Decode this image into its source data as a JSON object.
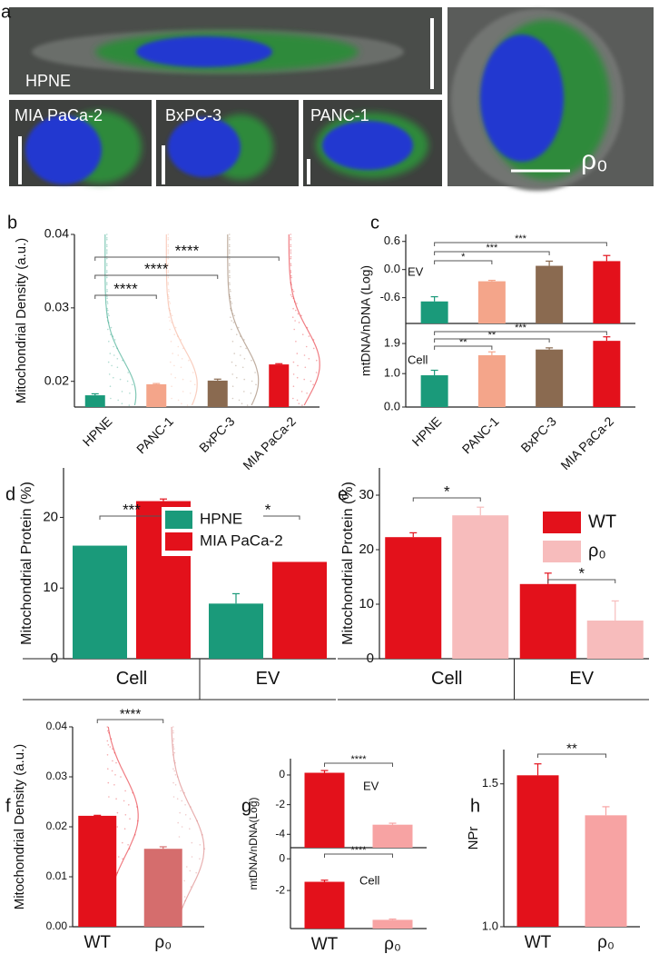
{
  "figure_a": {
    "letter": "a",
    "labels": [
      "HPNE",
      "MIA PaCa-2",
      "BxPC-3",
      "PANC-1",
      "ρ₀"
    ]
  },
  "chart_data": [
    {
      "letter": "b",
      "type": "bar",
      "ylabel": "Mitochondrial Density (a.u.)",
      "categories": [
        "HPNE",
        "PANC-1",
        "BxPC-3",
        "MIA PaCa-2"
      ],
      "values": [
        0.0181,
        0.0196,
        0.0201,
        0.0223
      ],
      "errors": [
        0.0002,
        0.0001,
        0.0002,
        0.0001
      ],
      "colors": [
        "#1a9a7a",
        "#f4a58a",
        "#8a6a50",
        "#e3111b"
      ],
      "ylim": [
        0.0165,
        0.04
      ],
      "yticks": [
        0.02,
        0.03,
        0.04
      ],
      "annotations": [
        "****",
        "****",
        "****"
      ]
    },
    {
      "letter": "c",
      "type": "bar",
      "ylabel": "mtDNA/nDNA (Log)",
      "categories": [
        "HPNE",
        "PANC-1",
        "BxPC-3",
        "MIA PaCa-2"
      ],
      "colors": [
        "#1a9a7a",
        "#f4a58a",
        "#8a6a50",
        "#e3111b"
      ],
      "subplots": [
        {
          "label": "EV",
          "values": [
            -0.68,
            -0.25,
            0.08,
            0.18
          ],
          "errors": [
            0.1,
            0.02,
            0.1,
            0.12
          ],
          "ylim": [
            -1.15,
            0.75
          ],
          "yticks": [
            -0.6,
            {
              "value": 0,
              "label": "0.0"
            },
            0.6
          ],
          "annotations": [
            "*",
            "***",
            "***"
          ]
        },
        {
          "label": "Cell",
          "values": [
            0.95,
            1.55,
            1.72,
            1.98
          ],
          "errors": [
            0.15,
            0.1,
            0.05,
            0.12
          ],
          "ylim": [
            0,
            2.5
          ],
          "yticks": [
            {
              "value": 0,
              "label": "0.0"
            },
            {
              "value": 1,
              "label": "1.0"
            },
            1.9
          ],
          "annotations": [
            "**",
            "**",
            "***"
          ]
        }
      ]
    },
    {
      "letter": "d",
      "type": "bar",
      "ylabel": "Mitochondrial Protein (%)",
      "categories": [
        "Cell",
        "EV"
      ],
      "series": [
        {
          "name": "HPNE",
          "color": "#1a9a7a",
          "values": [
            16.0,
            7.8
          ],
          "errors": [
            null,
            1.4
          ]
        },
        {
          "name": "MIA PaCa-2",
          "color": "#e3111b",
          "values": [
            22.3,
            13.7
          ],
          "errors": [
            0.3,
            null
          ]
        }
      ],
      "ylim": [
        0,
        27
      ],
      "yticks": [
        0,
        10,
        20
      ],
      "annotations": [
        "***",
        "*"
      ]
    },
    {
      "letter": "e",
      "type": "bar",
      "ylabel": "Mitochondrial Protein (%)",
      "categories": [
        "Cell",
        "EV"
      ],
      "series": [
        {
          "name": "WT",
          "color": "#e3111b",
          "values": [
            22.3,
            13.7
          ],
          "errors": [
            0.8,
            2.0
          ]
        },
        {
          "name": "ρ₀",
          "color": "#f7bcbc",
          "values": [
            26.3,
            7.0
          ],
          "errors": [
            1.5,
            3.6
          ]
        }
      ],
      "ylim": [
        0,
        35
      ],
      "yticks": [
        0,
        10,
        20,
        30
      ],
      "annotations": [
        "*",
        "*"
      ]
    },
    {
      "letter": "f",
      "type": "bar",
      "ylabel": "Mitochondrial Density (a.u.)",
      "categories": [
        "WT",
        "ρ₀"
      ],
      "values": [
        0.0222,
        0.0156
      ],
      "errors": [
        0.0001,
        0.0004
      ],
      "colors": [
        "#e3111b",
        "#d56d6d"
      ],
      "ylim": [
        0,
        0.04
      ],
      "yticks": [
        {
          "value": 0,
          "label": "0.00"
        },
        0.01,
        0.02,
        0.03,
        0.04
      ],
      "annotations": [
        "****"
      ]
    },
    {
      "letter": "g",
      "type": "bar",
      "ylabel": "mtDNA/nDNA(Log)",
      "categories": [
        "WT",
        "ρ₀"
      ],
      "colors": [
        "#e3111b",
        "#f7a3a3"
      ],
      "subplots": [
        {
          "label": "EV",
          "values": [
            0.15,
            -3.35
          ],
          "errors": [
            0.15,
            0.1
          ],
          "ylim": [
            -4.9,
            1.1
          ],
          "yticks": [
            -4,
            -2,
            0
          ],
          "annotations": [
            "****"
          ]
        },
        {
          "label": "Cell",
          "values": [
            -1.45,
            -3.85
          ],
          "errors": [
            0.1,
            0.05
          ],
          "ylim": [
            -4.4,
            0.7
          ],
          "yticks": [
            -2,
            0
          ],
          "annotations": [
            "****"
          ]
        }
      ]
    },
    {
      "letter": "h",
      "type": "bar",
      "ylabel": "NPr",
      "categories": [
        "WT",
        "ρ₀"
      ],
      "values": [
        1.53,
        1.39
      ],
      "errors": [
        0.04,
        0.03
      ],
      "colors": [
        "#e3111b",
        "#f7a3a3"
      ],
      "ylim": [
        1.0,
        1.62
      ],
      "yticks": [
        {
          "value": 1,
          "label": "1.0"
        },
        1.5
      ],
      "annotations": [
        "**"
      ]
    }
  ]
}
